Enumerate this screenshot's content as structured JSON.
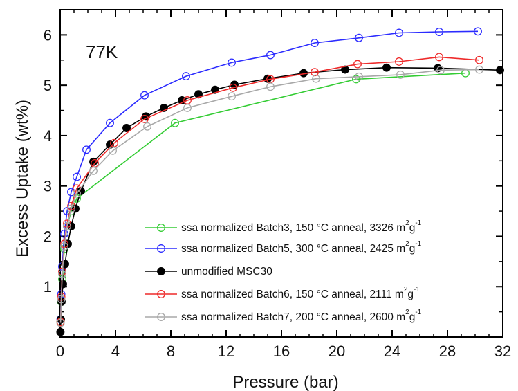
{
  "chart_data": {
    "type": "line",
    "title": "",
    "annotation": "77K",
    "xlabel": "Pressure (bar)",
    "ylabel": "Excess Uptake (wt%)",
    "xlim": [
      0,
      32
    ],
    "ylim": [
      0,
      6.5
    ],
    "xticks": [
      0,
      4,
      8,
      12,
      16,
      20,
      24,
      28,
      32
    ],
    "yticks": [
      1,
      2,
      3,
      4,
      5,
      6
    ],
    "grid": false,
    "legend_position": "bottom-right",
    "series": [
      {
        "name": "ssa normalized Batch3, 150 °C anneal, 3326 m",
        "unit_sup_1": "2",
        "unit_mid": "g",
        "unit_sup_2": "-1",
        "color": "#33cc33",
        "marker": "open-circle",
        "x": [
          0.03,
          0.08,
          0.15,
          0.3,
          0.5,
          0.8,
          1.2,
          8.3,
          21.4,
          29.3
        ],
        "y": [
          0.3,
          0.7,
          1.15,
          1.75,
          2.2,
          2.5,
          2.75,
          4.25,
          5.12,
          5.24
        ]
      },
      {
        "name": "ssa normalized Batch5, 300 °C anneal, 2425 m",
        "unit_sup_1": "2",
        "unit_mid": "g",
        "unit_sup_2": "-1",
        "color": "#2b2bff",
        "marker": "open-circle",
        "x": [
          0.03,
          0.08,
          0.15,
          0.3,
          0.5,
          0.8,
          1.2,
          1.9,
          3.6,
          6.1,
          9.1,
          12.4,
          15.2,
          18.4,
          21.6,
          24.5,
          27.4,
          30.2
        ],
        "y": [
          0.35,
          0.85,
          1.4,
          2.05,
          2.5,
          2.88,
          3.18,
          3.72,
          4.25,
          4.8,
          5.18,
          5.45,
          5.6,
          5.84,
          5.94,
          6.04,
          6.06,
          6.07
        ]
      },
      {
        "name": "unmodified MSC30",
        "color": "#000000",
        "marker": "filled-circle",
        "x": [
          0.02,
          0.05,
          0.1,
          0.2,
          0.35,
          0.55,
          0.8,
          1.1,
          1.5,
          2.4,
          3.6,
          4.8,
          6.2,
          7.5,
          8.8,
          10.0,
          11.2,
          12.6,
          15.0,
          17.6,
          20.6,
          23.6,
          27.3,
          31.8
        ],
        "y": [
          0.1,
          0.35,
          0.7,
          1.05,
          1.45,
          1.85,
          2.2,
          2.55,
          2.9,
          3.48,
          3.82,
          4.15,
          4.38,
          4.55,
          4.7,
          4.82,
          4.91,
          5.01,
          5.13,
          5.24,
          5.31,
          5.35,
          5.34,
          5.3
        ]
      },
      {
        "name": "ssa normalized Batch6, 150 °C anneal, 2111 m",
        "unit_sup_1": "2",
        "unit_mid": "g",
        "unit_sup_2": "-1",
        "color": "#ee2a2a",
        "marker": "open-circle",
        "x": [
          0.03,
          0.08,
          0.15,
          0.3,
          0.5,
          0.8,
          1.2,
          2.5,
          3.9,
          6.1,
          9.2,
          12.5,
          15.2,
          18.4,
          21.5,
          24.5,
          27.4,
          30.3
        ],
        "y": [
          0.3,
          0.8,
          1.3,
          1.85,
          2.25,
          2.6,
          2.95,
          3.45,
          3.85,
          4.33,
          4.7,
          4.95,
          5.12,
          5.26,
          5.42,
          5.47,
          5.56,
          5.5
        ]
      },
      {
        "name": "ssa normalized Batch7, 200 °C anneal, 2600 m",
        "unit_sup_1": "2",
        "unit_mid": "g",
        "unit_sup_2": "-1",
        "color": "#a8a8a8",
        "marker": "open-circle",
        "x": [
          0.03,
          0.08,
          0.15,
          0.3,
          0.5,
          0.8,
          1.2,
          2.4,
          3.8,
          6.3,
          9.2,
          12.4,
          15.2,
          18.5,
          21.6,
          24.6,
          27.5,
          30.3
        ],
        "y": [
          0.28,
          0.75,
          1.25,
          1.8,
          2.2,
          2.55,
          2.85,
          3.3,
          3.7,
          4.18,
          4.55,
          4.78,
          4.97,
          5.13,
          5.17,
          5.21,
          5.3,
          5.31
        ]
      }
    ]
  }
}
